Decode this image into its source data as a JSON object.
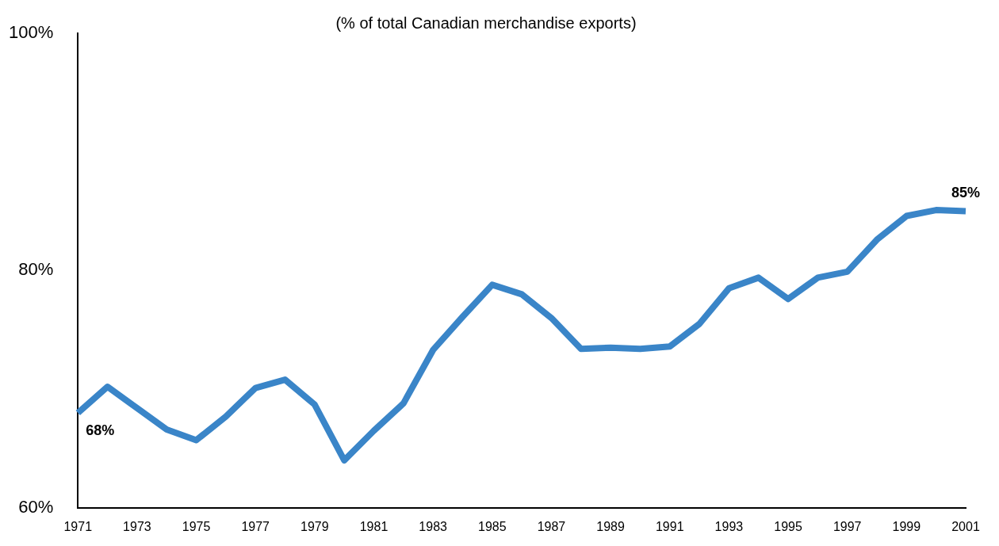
{
  "chart_data": {
    "type": "line",
    "subtitle": "(% of total Canadian merchandise exports)",
    "categories": [
      "1971",
      null,
      "1973",
      null,
      "1975",
      null,
      "1977",
      null,
      "1979",
      null,
      "1981",
      null,
      "1983",
      null,
      "1985",
      null,
      "1987",
      null,
      "1989",
      null,
      "1991",
      null,
      "1993",
      null,
      "1995",
      null,
      "1997",
      null,
      "1999",
      null,
      "2001"
    ],
    "series": [
      {
        "color": "#3a85c8",
        "values": [
          68,
          70.2,
          68.4,
          66.6,
          65.7,
          67.7,
          70.1,
          70.8,
          68.7,
          64.0,
          66.5,
          68.8,
          73.3,
          76.1,
          78.8,
          78.0,
          76.0,
          73.4,
          73.5,
          73.4,
          73.6,
          75.5,
          78.5,
          79.4,
          77.6,
          79.4,
          79.9,
          82.6,
          84.6,
          85.1,
          85
        ]
      }
    ],
    "ylim": [
      60,
      100
    ],
    "yticks": [
      {
        "value": 60,
        "label": "60%"
      },
      {
        "value": 80,
        "label": "80%"
      },
      {
        "value": 100,
        "label": "100%"
      }
    ],
    "grid": false,
    "legend": false,
    "marker": "none",
    "line_style": "solid",
    "annotations": [
      {
        "text": "68%",
        "x": "1971",
        "y": 68
      },
      {
        "text": "85%",
        "x": "2001",
        "y": 85
      }
    ]
  }
}
